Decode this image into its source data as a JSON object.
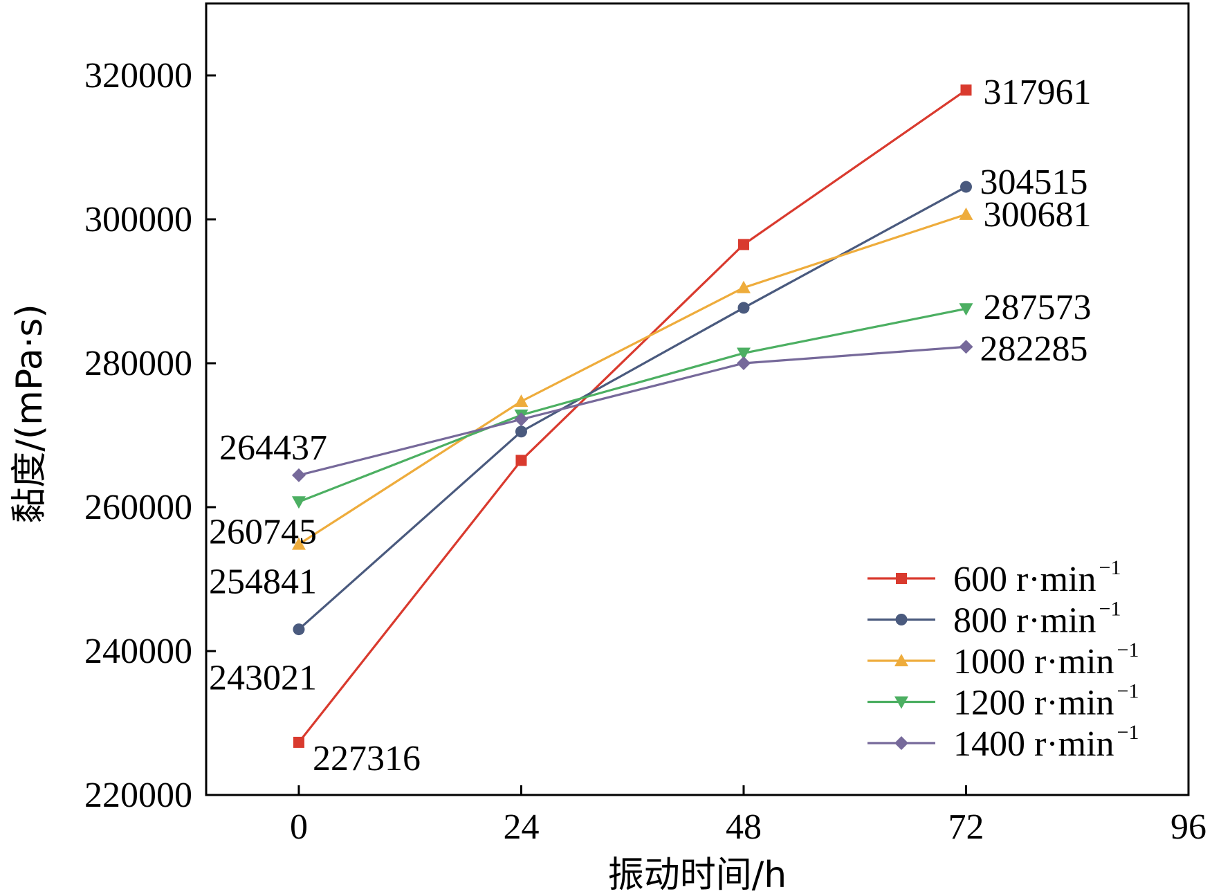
{
  "chart_data": {
    "type": "line",
    "title": "",
    "xlabel": "振动时间/h",
    "ylabel": "黏度/(mPa·s)",
    "x": [
      0,
      24,
      48,
      72
    ],
    "xlim": [
      -10,
      96
    ],
    "ylim": [
      220000,
      330000
    ],
    "xticks": [
      "0",
      "24",
      "48",
      "72",
      "96"
    ],
    "yticks": [
      "220000",
      "240000",
      "260000",
      "280000",
      "300000",
      "320000"
    ],
    "grid": false,
    "legend_position": "bottom-right",
    "series": [
      {
        "name": "600 r·min",
        "name_sup": "−1",
        "color": "#d93a2e",
        "marker": "square",
        "values": [
          227316,
          266500,
          296500,
          317961
        ],
        "labels": [
          {
            "index": 0,
            "text": "227316"
          },
          {
            "index": 3,
            "text": "317961"
          }
        ]
      },
      {
        "name": "800 r·min",
        "name_sup": "−1",
        "color": "#4a5a7e",
        "marker": "circle",
        "values": [
          243021,
          270500,
          287700,
          304515
        ],
        "labels": [
          {
            "index": 0,
            "text": "243021"
          },
          {
            "index": 3,
            "text": "304515"
          }
        ]
      },
      {
        "name": "1000 r·min",
        "name_sup": "−1",
        "color": "#eeac3c",
        "marker": "triangle-up",
        "values": [
          254841,
          274700,
          290500,
          300681
        ],
        "labels": [
          {
            "index": 0,
            "text": "254841"
          },
          {
            "index": 3,
            "text": "300681"
          }
        ]
      },
      {
        "name": "1200 r·min",
        "name_sup": "−1",
        "color": "#4caf62",
        "marker": "triangle-down",
        "values": [
          260745,
          272800,
          281400,
          287573
        ],
        "labels": [
          {
            "index": 0,
            "text": "260745"
          },
          {
            "index": 3,
            "text": "287573"
          }
        ]
      },
      {
        "name": "1400 r·min",
        "name_sup": "−1",
        "color": "#76699a",
        "marker": "diamond",
        "values": [
          264437,
          272200,
          280000,
          282285
        ],
        "labels": [
          {
            "index": 0,
            "text": "264437"
          },
          {
            "index": 3,
            "text": "282285"
          }
        ]
      }
    ]
  }
}
